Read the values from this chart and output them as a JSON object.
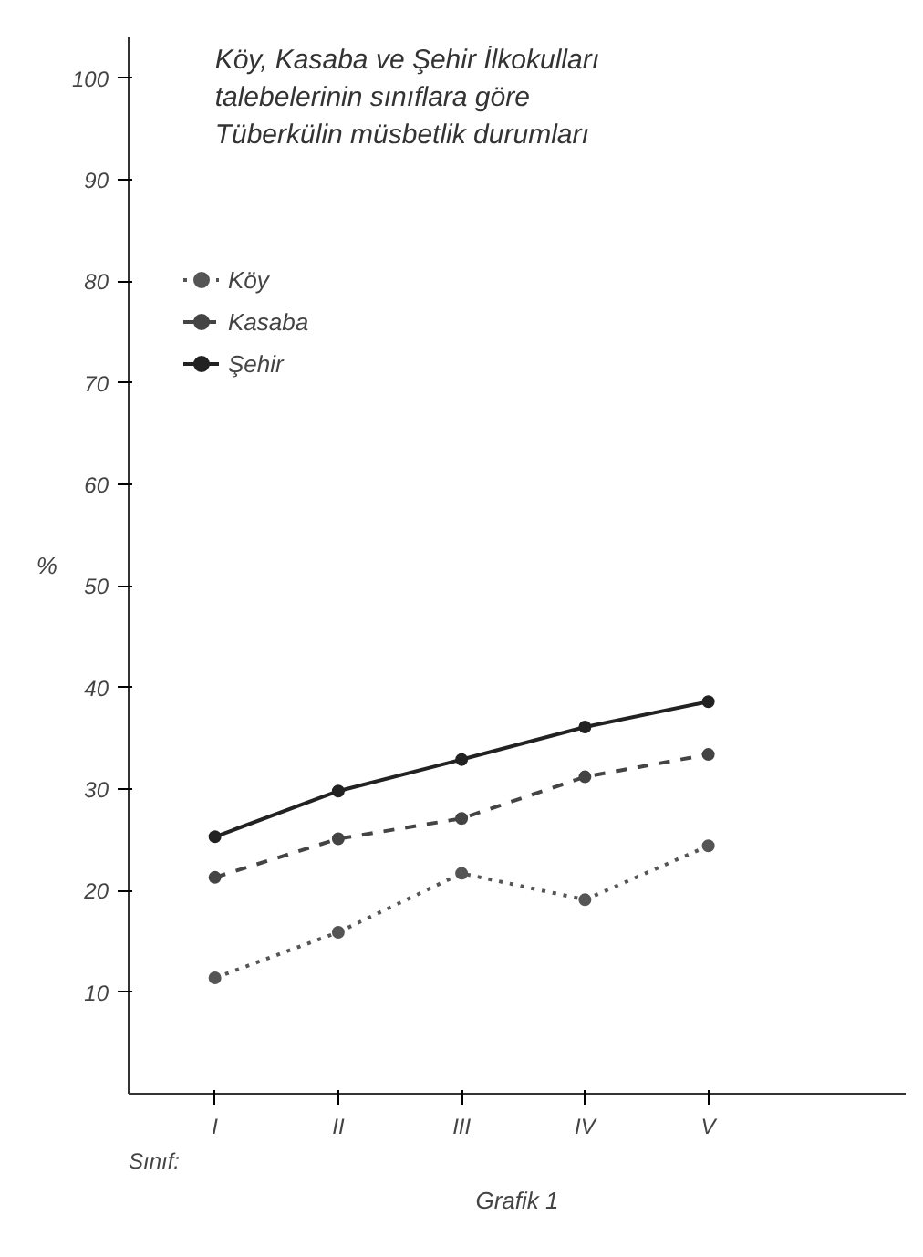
{
  "chart_data": {
    "type": "line",
    "title": "Köy, Kasaba ve Şehir İlkokulları talebelerinin sınıflara göre Tüberkülin müsbetlik durumları",
    "ylabel": "%",
    "xlabel": "Sınıf:",
    "categories": [
      "I",
      "II",
      "III",
      "IV",
      "V"
    ],
    "series": [
      {
        "name": "Köy",
        "color": "#555555",
        "values": [
          11.4,
          15.9,
          21.7,
          19.1,
          24.4
        ],
        "line_style": "dotted"
      },
      {
        "name": "Kasaba",
        "color": "#444444",
        "values": [
          21.3,
          25.1,
          27.1,
          31.2,
          33.4
        ],
        "line_style": "dashed"
      },
      {
        "name": "Şehir",
        "color": "#222222",
        "values": [
          25.3,
          29.8,
          32.9,
          36.1,
          38.6
        ],
        "line_style": "solid"
      }
    ],
    "ylim": [
      0,
      104
    ],
    "yticks": [
      10,
      20,
      30,
      40,
      50,
      60,
      70,
      80,
      90,
      100
    ],
    "marker": "circle",
    "grid": false,
    "legend": "top left",
    "annotations": [
      "Grafik 1"
    ]
  }
}
